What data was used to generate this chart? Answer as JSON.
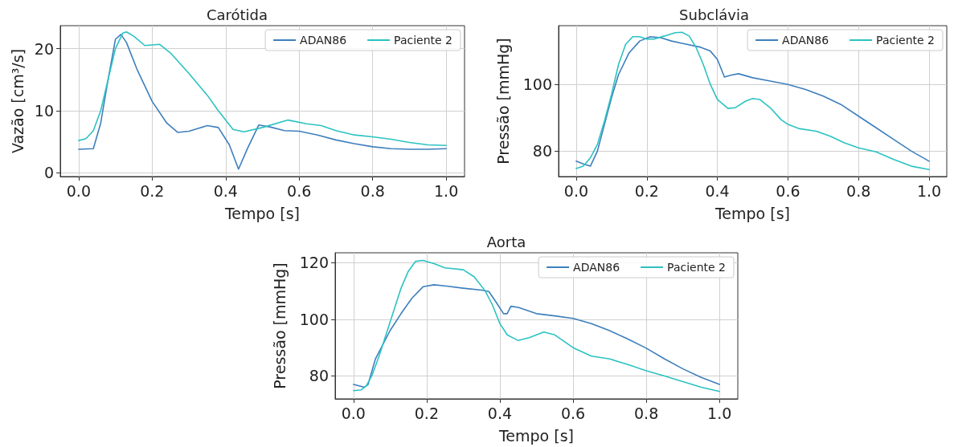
{
  "chart_data": [
    {
      "type": "line",
      "title": "Carótida",
      "xlabel": "Tempo [s]",
      "ylabel": "Vazão [cm³/s]",
      "xlim": [
        -0.05,
        1.05
      ],
      "ylim": [
        -0.6,
        23.7
      ],
      "xticks": [
        {
          "value": 0,
          "label": "0.0"
        },
        {
          "value": 0.2,
          "label": "0.2"
        },
        {
          "value": 0.4,
          "label": "0.4"
        },
        {
          "value": 0.6,
          "label": "0.6"
        },
        {
          "value": 0.8,
          "label": "0.8"
        },
        {
          "value": 1,
          "label": "1.0"
        }
      ],
      "yticks": [
        0,
        10,
        20
      ],
      "grid": true,
      "legend": "top right",
      "marker": "none",
      "line_style": "solid",
      "series": [
        {
          "name": "ADAN86",
          "color": "#3d7fbd",
          "x": [
            0,
            0.04,
            0.06,
            0.08,
            0.1,
            0.115,
            0.13,
            0.16,
            0.2,
            0.24,
            0.27,
            0.3,
            0.35,
            0.38,
            0.41,
            0.435,
            0.46,
            0.49,
            0.52,
            0.56,
            0.6,
            0.65,
            0.7,
            0.75,
            0.8,
            0.85,
            0.9,
            0.95,
            1.0
          ],
          "values": [
            3.8,
            3.9,
            8,
            15,
            21.5,
            22.3,
            21,
            16.5,
            11.5,
            8,
            6.5,
            6.7,
            7.6,
            7.3,
            4.5,
            0.6,
            4,
            7.7,
            7.4,
            6.8,
            6.7,
            6.1,
            5.3,
            4.7,
            4.2,
            3.9,
            3.8,
            3.8,
            3.9
          ]
        },
        {
          "name": "Paciente 2",
          "color": "#2cc2c2",
          "x": [
            0,
            0.02,
            0.04,
            0.06,
            0.08,
            0.1,
            0.12,
            0.13,
            0.15,
            0.18,
            0.22,
            0.25,
            0.3,
            0.35,
            0.38,
            0.42,
            0.45,
            0.5,
            0.57,
            0.62,
            0.66,
            0.7,
            0.75,
            0.8,
            0.85,
            0.9,
            0.95,
            1.0
          ],
          "values": [
            5.2,
            5.5,
            6.8,
            10,
            15,
            20,
            22.5,
            22.7,
            22,
            20.5,
            20.7,
            19.3,
            16,
            12.5,
            10,
            7,
            6.6,
            7.3,
            8.5,
            7.9,
            7.6,
            6.8,
            6.1,
            5.8,
            5.4,
            4.9,
            4.5,
            4.4
          ]
        }
      ]
    },
    {
      "type": "line",
      "title": "Subclávia",
      "xlabel": "Tempo [s]",
      "ylabel": "Pressão [mmHg]",
      "xlim": [
        -0.05,
        1.05
      ],
      "ylim": [
        72.4,
        117.6
      ],
      "xticks": [
        {
          "value": 0,
          "label": "0.0"
        },
        {
          "value": 0.2,
          "label": "0.2"
        },
        {
          "value": 0.4,
          "label": "0.4"
        },
        {
          "value": 0.6,
          "label": "0.6"
        },
        {
          "value": 0.8,
          "label": "0.8"
        },
        {
          "value": 1,
          "label": "1.0"
        }
      ],
      "yticks": [
        80,
        100
      ],
      "grid": true,
      "legend": "top right",
      "marker": "none",
      "line_style": "solid",
      "series": [
        {
          "name": "ADAN86",
          "color": "#3d7fbd",
          "x": [
            0,
            0.02,
            0.04,
            0.06,
            0.08,
            0.1,
            0.12,
            0.15,
            0.18,
            0.21,
            0.24,
            0.27,
            0.3,
            0.35,
            0.38,
            0.4,
            0.42,
            0.44,
            0.46,
            0.5,
            0.55,
            0.6,
            0.65,
            0.7,
            0.75,
            0.8,
            0.85,
            0.9,
            0.95,
            1.0
          ],
          "values": [
            77,
            76.2,
            75.5,
            80,
            88,
            96,
            103,
            109.5,
            113,
            114.3,
            114,
            113,
            112.3,
            111.2,
            110,
            107.5,
            102.2,
            102.8,
            103.2,
            102,
            101,
            100,
            98.5,
            96.5,
            94,
            90.5,
            87,
            83.5,
            80,
            77
          ]
        },
        {
          "name": "Paciente 2",
          "color": "#2cc2c2",
          "x": [
            0,
            0.02,
            0.04,
            0.06,
            0.08,
            0.1,
            0.12,
            0.14,
            0.16,
            0.18,
            0.2,
            0.22,
            0.25,
            0.28,
            0.3,
            0.32,
            0.34,
            0.36,
            0.38,
            0.4,
            0.43,
            0.45,
            0.48,
            0.5,
            0.52,
            0.55,
            0.58,
            0.6,
            0.63,
            0.68,
            0.72,
            0.76,
            0.8,
            0.85,
            0.9,
            0.95,
            1.0
          ],
          "values": [
            74.8,
            75.5,
            78,
            82,
            89,
            97,
            106,
            112,
            114.3,
            114.3,
            113.6,
            113.6,
            114.5,
            115.5,
            115.6,
            114.5,
            111,
            106,
            100,
            95.5,
            92.8,
            93,
            95,
            95.8,
            95.5,
            93,
            89.5,
            88,
            86.8,
            86,
            84.5,
            82.5,
            81,
            79.8,
            77.5,
            75.5,
            74.5
          ]
        }
      ]
    },
    {
      "type": "line",
      "title": "Aorta",
      "xlabel": "Tempo [s]",
      "ylabel": "Pressão [mmHg]",
      "xlim": [
        -0.05,
        1.05
      ],
      "ylim": [
        71.9,
        123.5
      ],
      "xticks": [
        {
          "value": 0,
          "label": "0.0"
        },
        {
          "value": 0.2,
          "label": "0.2"
        },
        {
          "value": 0.4,
          "label": "0.4"
        },
        {
          "value": 0.6,
          "label": "0.6"
        },
        {
          "value": 0.8,
          "label": "0.8"
        },
        {
          "value": 1,
          "label": "1.0"
        }
      ],
      "yticks": [
        80,
        100,
        120
      ],
      "grid": true,
      "legend": "top right",
      "marker": "none",
      "line_style": "solid",
      "series": [
        {
          "name": "ADAN86",
          "color": "#3d7fbd",
          "x": [
            0,
            0.03,
            0.04,
            0.06,
            0.08,
            0.1,
            0.13,
            0.16,
            0.19,
            0.22,
            0.25,
            0.3,
            0.35,
            0.37,
            0.39,
            0.41,
            0.42,
            0.43,
            0.45,
            0.5,
            0.55,
            0.6,
            0.65,
            0.7,
            0.75,
            0.8,
            0.85,
            0.9,
            0.95,
            1.0
          ],
          "values": [
            77,
            76,
            77,
            86,
            91,
            96,
            102,
            107.5,
            111.5,
            112.2,
            111.8,
            111,
            110.3,
            109.8,
            106,
            102,
            102,
            104.6,
            104.2,
            102,
            101.2,
            100.3,
            98.5,
            96,
            93,
            89.8,
            86,
            82.5,
            79.5,
            77
          ]
        },
        {
          "name": "Paciente 2",
          "color": "#2cc2c2",
          "x": [
            0,
            0.02,
            0.035,
            0.05,
            0.07,
            0.09,
            0.11,
            0.13,
            0.15,
            0.17,
            0.19,
            0.22,
            0.25,
            0.3,
            0.33,
            0.36,
            0.38,
            0.4,
            0.42,
            0.45,
            0.48,
            0.52,
            0.55,
            0.6,
            0.65,
            0.7,
            0.75,
            0.8,
            0.85,
            0.9,
            0.95,
            1.0
          ],
          "values": [
            74.8,
            75,
            76.5,
            80,
            87,
            95,
            103,
            111,
            117,
            120.5,
            120.8,
            119.7,
            118.2,
            117.5,
            115,
            110,
            105,
            98.5,
            94.5,
            92.5,
            93.5,
            95.5,
            94.5,
            90,
            87,
            86,
            84,
            81.8,
            80,
            78,
            76,
            74.5
          ]
        }
      ]
    }
  ]
}
